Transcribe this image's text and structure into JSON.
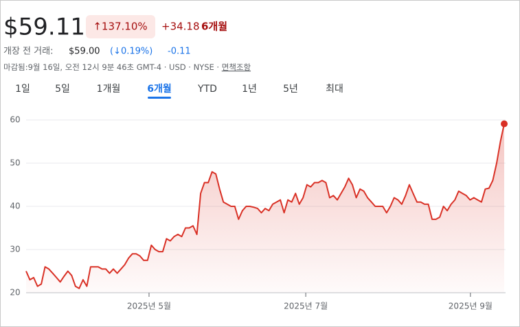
{
  "header": {
    "price": "$59.11",
    "change_badge": "↑137.10%",
    "change_abs": "+34.18",
    "change_period": "6개월",
    "premarket_label": "개장 전 거래:",
    "premarket_price": "$59.00",
    "premarket_percent": "(↓0.19%)",
    "premarket_abs": "-0.11",
    "meta": "마감됨:9월 16일, 오전 12시 9분 46초 GMT-4 · USD · NYSE · ",
    "disclaimer": "면책조항"
  },
  "tabs": {
    "items": [
      "1일",
      "5일",
      "1개월",
      "6개월",
      "YTD",
      "1년",
      "5년",
      "최대"
    ],
    "selected": 3
  },
  "chart_data": {
    "type": "line",
    "color": "#d93025",
    "values": [
      25,
      23,
      23.5,
      21.5,
      22,
      26,
      25.5,
      24.5,
      23.5,
      22.5,
      23.8,
      25,
      24,
      21.5,
      21,
      23,
      21.5,
      26,
      26,
      26,
      25.5,
      25.5,
      24.5,
      25.5,
      24.5,
      25.5,
      26.5,
      28,
      29,
      29,
      28.5,
      27.5,
      27.5,
      31,
      30,
      29.5,
      29.5,
      32.5,
      32,
      33,
      33.5,
      33,
      35,
      35,
      35.5,
      33.5,
      43,
      45.5,
      45.5,
      48,
      47.5,
      44,
      41,
      40.5,
      40,
      40,
      37,
      39,
      40,
      40,
      39.8,
      39.5,
      38.5,
      39.5,
      39,
      40.5,
      41,
      41.5,
      38.5,
      41.5,
      41,
      43,
      40.5,
      42,
      45,
      44.5,
      45.5,
      45.5,
      46,
      45.5,
      42,
      42.5,
      41.5,
      43,
      44.5,
      46.5,
      45,
      42,
      44,
      43.5,
      42,
      41,
      40,
      40,
      40,
      38.5,
      40,
      42,
      41.5,
      40.5,
      42.5,
      45,
      43,
      41,
      41,
      40.5,
      40.5,
      37,
      37,
      37.5,
      40,
      39,
      40.5,
      41.5,
      43.5,
      43,
      42.5,
      41.5,
      42,
      41.5,
      41,
      44,
      44.2,
      46,
      50,
      55,
      59.11
    ],
    "xlim": [
      0,
      126
    ],
    "xticks": [
      {
        "value": 32.4,
        "label": "2025년 5월"
      },
      {
        "value": 73.7,
        "label": "2025년 7월"
      },
      {
        "value": 117.1,
        "label": "2025년 9월"
      }
    ],
    "ylim": [
      20,
      60
    ],
    "yticks": [
      20,
      30,
      40,
      50,
      60
    ],
    "grid": true
  }
}
